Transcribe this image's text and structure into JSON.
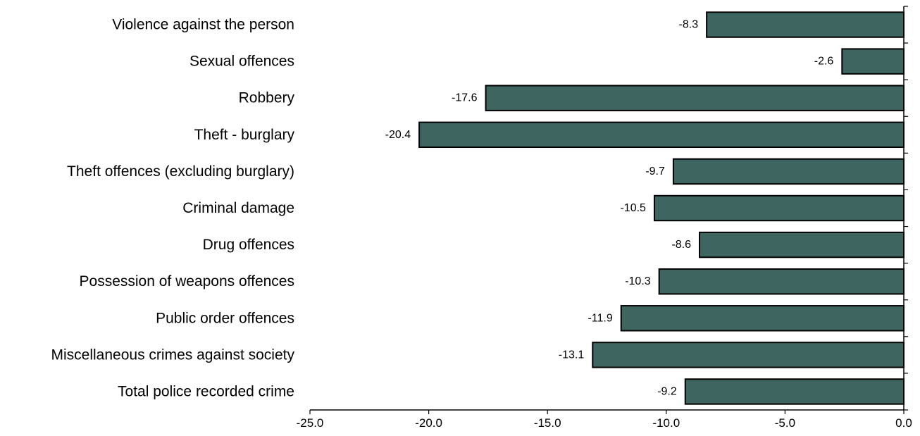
{
  "chart_data": {
    "type": "bar",
    "orientation": "horizontal",
    "categories": [
      "Violence against the person",
      "Sexual offences",
      "Robbery",
      "Theft - burglary",
      "Theft offences (excluding burglary)",
      "Criminal damage",
      "Drug offences",
      "Possession of weapons offences",
      "Public order offences",
      "Miscellaneous crimes against society",
      "Total police recorded crime"
    ],
    "values": [
      -8.3,
      -2.6,
      -17.6,
      -20.4,
      -9.7,
      -10.5,
      -8.6,
      -10.3,
      -11.9,
      -13.1,
      -9.2
    ],
    "value_labels": [
      "-8.3",
      "-2.6",
      "-17.6",
      "-20.4",
      "-9.7",
      "-10.5",
      "-8.6",
      "-10.3",
      "-11.9",
      "-13.1",
      "-9.2"
    ],
    "xticks": [
      -25,
      -20,
      -15,
      -10,
      -5,
      0
    ],
    "xtick_labels": [
      "-25.0",
      "-20.0",
      "-15.0",
      "-10.0",
      "-5.0",
      "0.0"
    ],
    "xlim": [
      -25,
      0
    ],
    "grid": false,
    "legend": "none",
    "title": "",
    "xlabel": "",
    "ylabel": "",
    "colors": {
      "bar": "#3e6560",
      "bar_edge": "#000000"
    }
  }
}
